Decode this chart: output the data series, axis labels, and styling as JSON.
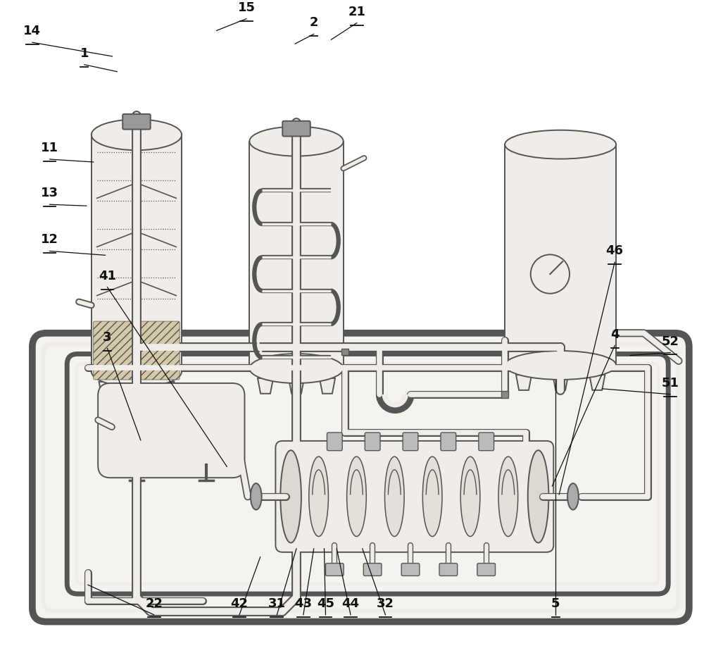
{
  "bg_color": "#ffffff",
  "lc": "#555555",
  "fc": "#f0ede8",
  "fc2": "#e8e4de",
  "lw": 1.4,
  "pipe_outer_lw": 7,
  "pipe_inner_lw": 4.5,
  "fig_w": 10.0,
  "fig_h": 9.28
}
